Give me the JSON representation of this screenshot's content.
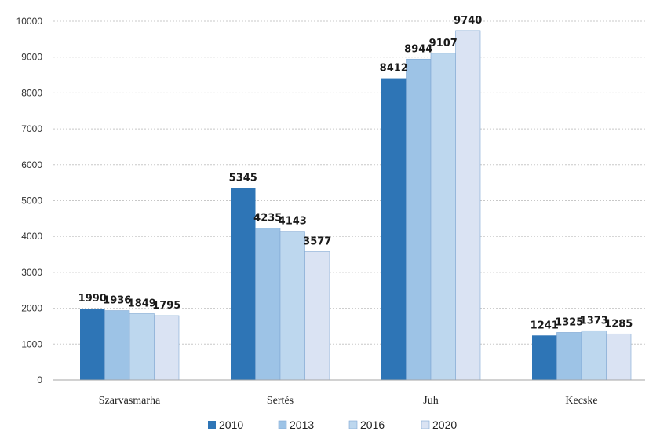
{
  "chart_data": {
    "type": "bar",
    "categories": [
      "Szarvasmarha",
      "Sertés",
      "Juh",
      "Kecske"
    ],
    "series": [
      {
        "name": "2010",
        "values": [
          1990,
          5345,
          8412,
          1241
        ],
        "color": "#2e75b6"
      },
      {
        "name": "2013",
        "values": [
          1936,
          4235,
          8944,
          1325
        ],
        "color": "#9dc3e6"
      },
      {
        "name": "2016",
        "values": [
          1849,
          4143,
          9107,
          1373
        ],
        "color": "#bdd7ee"
      },
      {
        "name": "2020",
        "values": [
          1795,
          3577,
          9740,
          1285
        ],
        "color": "#dae3f3"
      }
    ],
    "ylim": [
      0,
      10000
    ],
    "yticks": [
      "0",
      "1000",
      "2000",
      "3000",
      "4000",
      "5000",
      "6000",
      "7000",
      "8000",
      "9000",
      "10000"
    ],
    "grid": true,
    "legend_position": "bottom",
    "data_labels": true
  }
}
